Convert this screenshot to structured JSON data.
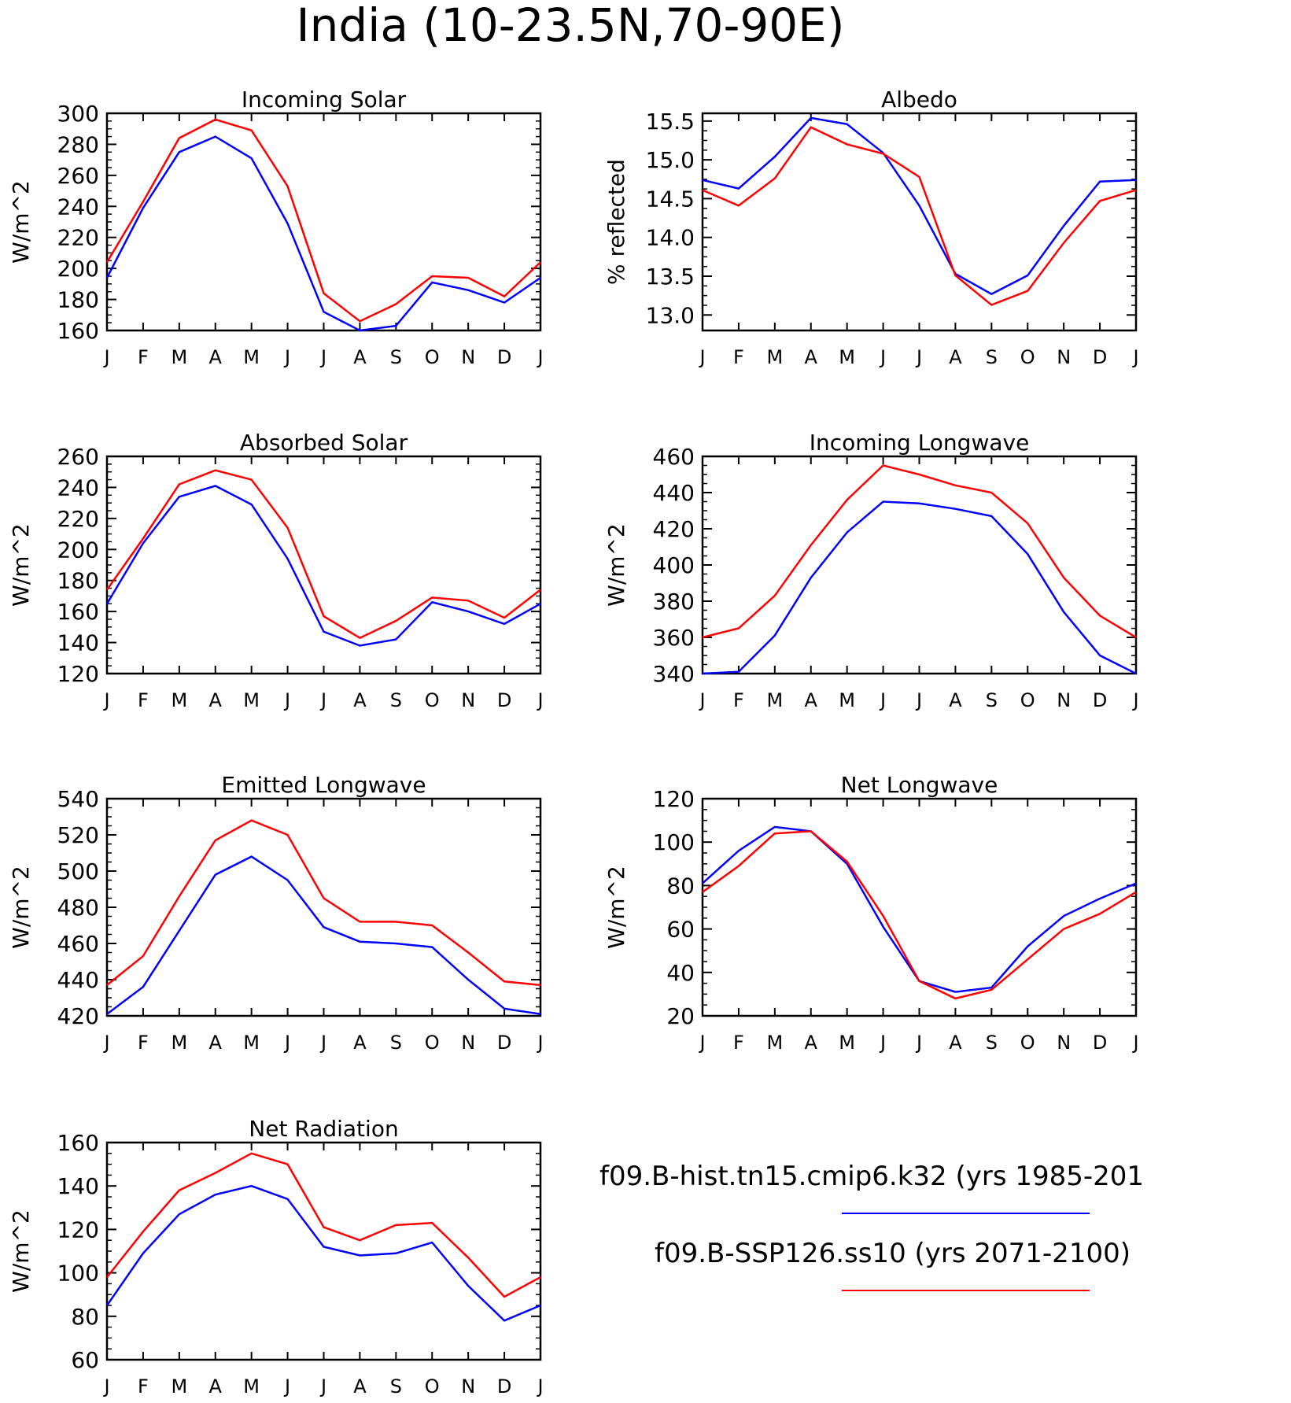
{
  "figure": {
    "title": "India (10-23.5N,70-90E)",
    "legend": [
      {
        "label": "f09.B-hist.tn15.cmip6.k32 (yrs 1985-201",
        "color": "#0000ff"
      },
      {
        "label": "f09.B-SSP126.ss10 (yrs 2071-2100)",
        "color": "#ff0000"
      }
    ]
  },
  "chart_data": [
    {
      "type": "line",
      "title": "Incoming Solar",
      "ylabel": "W/m^2",
      "categories": [
        "J",
        "F",
        "M",
        "A",
        "M",
        "J",
        "J",
        "A",
        "S",
        "O",
        "N",
        "D",
        "J"
      ],
      "ylim": [
        160,
        300
      ],
      "yticks": [
        160,
        180,
        200,
        220,
        240,
        260,
        280,
        300
      ],
      "ytick_labels": [
        "160",
        "180",
        "200",
        "220",
        "240",
        "260",
        "280",
        "300"
      ],
      "series": [
        {
          "color": "#0000ff",
          "values": [
            194,
            239,
            275,
            285,
            271,
            229,
            172,
            160,
            163,
            191,
            186,
            178,
            194
          ]
        },
        {
          "color": "#ff0000",
          "values": [
            204,
            243,
            284,
            296,
            289,
            253,
            184,
            166,
            177,
            195,
            194,
            182,
            204
          ]
        }
      ]
    },
    {
      "type": "line",
      "title": "Albedo",
      "ylabel": "% reflected",
      "categories": [
        "J",
        "F",
        "M",
        "A",
        "M",
        "J",
        "J",
        "A",
        "S",
        "O",
        "N",
        "D",
        "J"
      ],
      "ylim": [
        12.8,
        15.6
      ],
      "yticks": [
        13.0,
        13.5,
        14.0,
        14.5,
        15.0,
        15.5
      ],
      "ytick_labels": [
        "13.0",
        "13.5",
        "14.0",
        "14.5",
        "15.0",
        "15.5"
      ],
      "series": [
        {
          "color": "#0000ff",
          "values": [
            14.74,
            14.63,
            15.04,
            15.54,
            15.46,
            15.09,
            14.41,
            13.53,
            13.27,
            13.51,
            14.15,
            14.72,
            14.74
          ]
        },
        {
          "color": "#ff0000",
          "values": [
            14.61,
            14.41,
            14.76,
            15.42,
            15.2,
            15.08,
            14.78,
            13.51,
            13.13,
            13.31,
            13.93,
            14.47,
            14.61
          ]
        }
      ]
    },
    {
      "type": "line",
      "title": "Absorbed Solar",
      "ylabel": "W/m^2",
      "categories": [
        "J",
        "F",
        "M",
        "A",
        "M",
        "J",
        "J",
        "A",
        "S",
        "O",
        "N",
        "D",
        "J"
      ],
      "ylim": [
        120,
        260
      ],
      "yticks": [
        120,
        140,
        160,
        180,
        200,
        220,
        240,
        260
      ],
      "ytick_labels": [
        "120",
        "140",
        "160",
        "180",
        "200",
        "220",
        "240",
        "260"
      ],
      "series": [
        {
          "color": "#0000ff",
          "values": [
            165,
            204,
            234,
            241,
            229,
            194,
            147,
            138,
            142,
            166,
            160,
            152,
            165
          ]
        },
        {
          "color": "#ff0000",
          "values": [
            174,
            207,
            242,
            251,
            245,
            214,
            157,
            143,
            154,
            169,
            167,
            156,
            174
          ]
        }
      ]
    },
    {
      "type": "line",
      "title": "Incoming Longwave",
      "ylabel": "W/m^2",
      "categories": [
        "J",
        "F",
        "M",
        "A",
        "M",
        "J",
        "J",
        "A",
        "S",
        "O",
        "N",
        "D",
        "J"
      ],
      "ylim": [
        340,
        460
      ],
      "yticks": [
        340,
        360,
        380,
        400,
        420,
        440,
        460
      ],
      "ytick_labels": [
        "340",
        "360",
        "380",
        "400",
        "420",
        "440",
        "460"
      ],
      "series": [
        {
          "color": "#0000ff",
          "values": [
            340,
            341,
            361,
            393,
            418,
            435,
            434,
            431,
            427,
            406,
            374,
            350,
            340
          ]
        },
        {
          "color": "#ff0000",
          "values": [
            360,
            365,
            383,
            411,
            436,
            455,
            450,
            444,
            440,
            423,
            393,
            372,
            360
          ]
        }
      ]
    },
    {
      "type": "line",
      "title": "Emitted Longwave",
      "ylabel": "W/m^2",
      "categories": [
        "J",
        "F",
        "M",
        "A",
        "M",
        "J",
        "J",
        "A",
        "S",
        "O",
        "N",
        "D",
        "J"
      ],
      "ylim": [
        420,
        540
      ],
      "yticks": [
        420,
        440,
        460,
        480,
        500,
        520,
        540
      ],
      "ytick_labels": [
        "420",
        "440",
        "460",
        "480",
        "500",
        "520",
        "540"
      ],
      "series": [
        {
          "color": "#0000ff",
          "values": [
            421,
            436,
            467,
            498,
            508,
            495,
            469,
            461,
            460,
            458,
            440,
            424,
            421
          ]
        },
        {
          "color": "#ff0000",
          "values": [
            437,
            453,
            486,
            517,
            528,
            520,
            485,
            472,
            472,
            470,
            455,
            439,
            437
          ]
        }
      ]
    },
    {
      "type": "line",
      "title": "Net Longwave",
      "ylabel": "W/m^2",
      "categories": [
        "J",
        "F",
        "M",
        "A",
        "M",
        "J",
        "J",
        "A",
        "S",
        "O",
        "N",
        "D",
        "J"
      ],
      "ylim": [
        20,
        120
      ],
      "yticks": [
        20,
        40,
        60,
        80,
        100,
        120
      ],
      "ytick_labels": [
        "20",
        "40",
        "60",
        "80",
        "100",
        "120"
      ],
      "series": [
        {
          "color": "#0000ff",
          "values": [
            81,
            96,
            107,
            105,
            90,
            61,
            36,
            31,
            33,
            52,
            66,
            74,
            81
          ]
        },
        {
          "color": "#ff0000",
          "values": [
            77,
            89,
            104,
            105,
            91,
            66,
            36,
            28,
            32,
            46,
            60,
            67,
            77
          ]
        }
      ]
    },
    {
      "type": "line",
      "title": "Net Radiation",
      "ylabel": "W/m^2",
      "categories": [
        "J",
        "F",
        "M",
        "A",
        "M",
        "J",
        "J",
        "A",
        "S",
        "O",
        "N",
        "D",
        "J"
      ],
      "ylim": [
        60,
        160
      ],
      "yticks": [
        60,
        80,
        100,
        120,
        140,
        160
      ],
      "ytick_labels": [
        "60",
        "80",
        "100",
        "120",
        "140",
        "160"
      ],
      "series": [
        {
          "color": "#0000ff",
          "values": [
            85,
            109,
            127,
            136,
            140,
            134,
            112,
            108,
            109,
            114,
            94,
            78,
            85
          ]
        },
        {
          "color": "#ff0000",
          "values": [
            98,
            119,
            138,
            146,
            155,
            150,
            121,
            115,
            122,
            123,
            107,
            89,
            98
          ]
        }
      ]
    }
  ]
}
